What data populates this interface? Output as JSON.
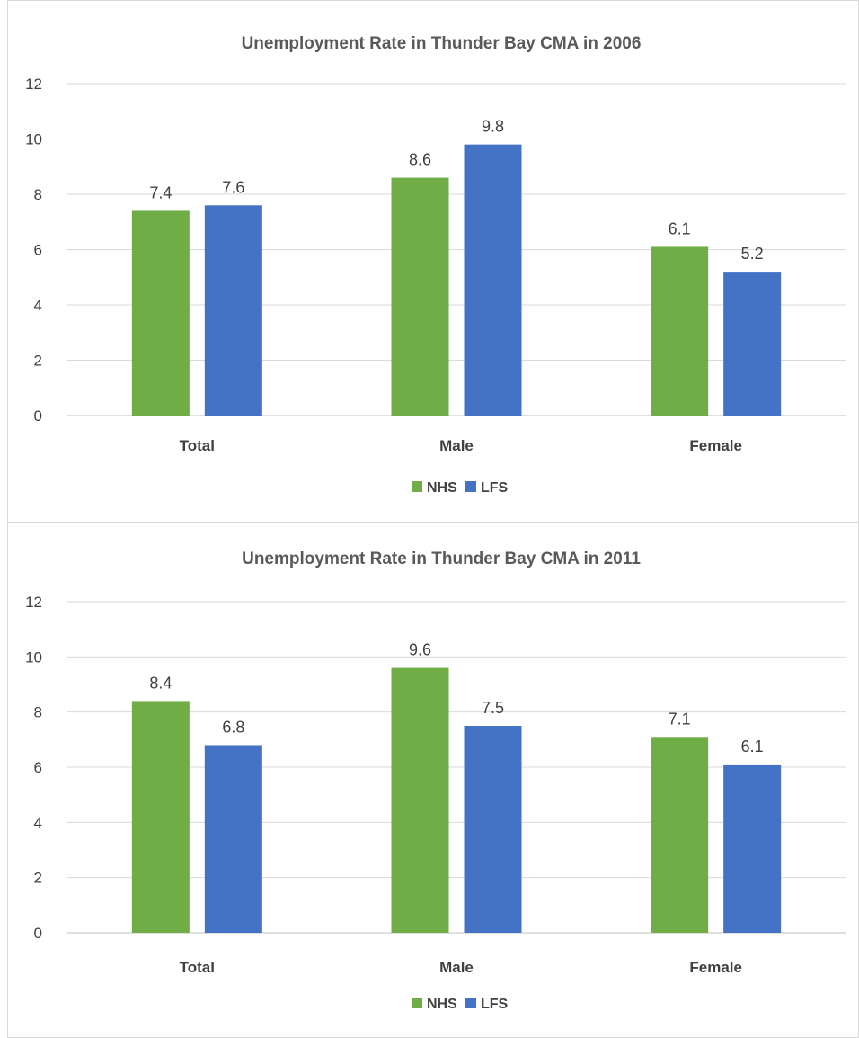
{
  "colors": {
    "NHS": "#70ad47",
    "LFS": "#4472c4"
  },
  "chart_data": [
    {
      "type": "bar",
      "title": "Unemployment Rate in Thunder Bay CMA in 2006",
      "categories": [
        "Total",
        "Male",
        "Female"
      ],
      "series": [
        {
          "name": "NHS",
          "values": [
            7.4,
            8.6,
            6.1
          ]
        },
        {
          "name": "LFS",
          "values": [
            7.6,
            9.8,
            5.2
          ]
        }
      ],
      "ylim": [
        0,
        12
      ],
      "yticks": [
        0,
        2,
        4,
        6,
        8,
        10,
        12
      ],
      "grid": true,
      "legend": "bottom"
    },
    {
      "type": "bar",
      "title": "Unemployment Rate in Thunder Bay CMA in 2011",
      "categories": [
        "Total",
        "Male",
        "Female"
      ],
      "series": [
        {
          "name": "NHS",
          "values": [
            8.4,
            9.6,
            7.1
          ]
        },
        {
          "name": "LFS",
          "values": [
            6.8,
            7.5,
            6.1
          ]
        }
      ],
      "ylim": [
        0,
        12
      ],
      "yticks": [
        0,
        2,
        4,
        6,
        8,
        10,
        12
      ],
      "grid": true,
      "legend": "bottom"
    }
  ]
}
